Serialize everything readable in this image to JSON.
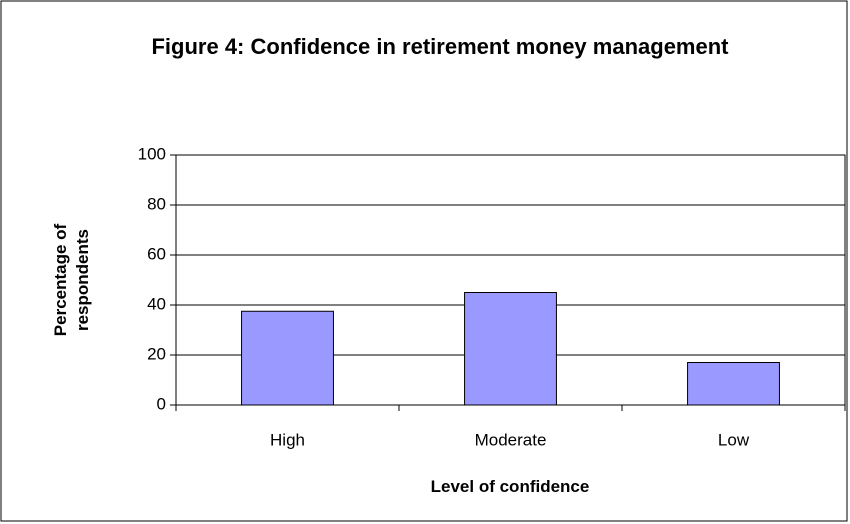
{
  "chart_data": {
    "type": "bar",
    "title": "Figure 4: Confidence in retirement money management",
    "xlabel": "Level of confidence",
    "ylabel": "Percentage of respondents",
    "categories": [
      "High",
      "Moderate",
      "Low"
    ],
    "values": [
      37.5,
      45,
      17
    ],
    "color": "#9999ff",
    "ylim": [
      0,
      100
    ],
    "yticks": [
      0,
      20,
      40,
      60,
      80,
      100
    ],
    "grid": true
  }
}
